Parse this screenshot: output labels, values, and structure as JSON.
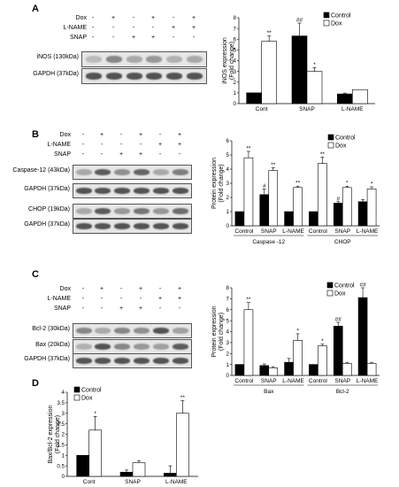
{
  "panels": [
    "A",
    "B",
    "C",
    "D"
  ],
  "blot_A": {
    "rows": [
      {
        "label": "Dox",
        "signs": [
          "-",
          "+",
          "-",
          "+",
          "-",
          "+"
        ]
      },
      {
        "label": "L-NAME",
        "signs": [
          "-",
          "-",
          "-",
          "-",
          "+",
          "+"
        ]
      },
      {
        "label": "SNAP",
        "signs": [
          "-",
          "-",
          "+",
          "+",
          "-",
          "-"
        ]
      }
    ],
    "bands": [
      {
        "label": "iNOS (130kDa)",
        "intensity": [
          0.25,
          0.55,
          0.35,
          0.45,
          0.3,
          0.35
        ]
      },
      {
        "label": "GAPDH (37kDa)",
        "intensity": [
          0.85,
          0.85,
          0.85,
          0.85,
          0.85,
          0.85
        ]
      }
    ]
  },
  "blot_B": {
    "rows": [
      {
        "label": "Dox",
        "signs": [
          "-",
          "+",
          "-",
          "+",
          "-",
          "+"
        ]
      },
      {
        "label": "L-NAME",
        "signs": [
          "-",
          "-",
          "-",
          "-",
          "+",
          "+"
        ]
      },
      {
        "label": "SNAP",
        "signs": [
          "-",
          "-",
          "+",
          "+",
          "-",
          "-"
        ]
      }
    ],
    "bands": [
      {
        "label": "Caspase-12 (43kDa)",
        "intensity": [
          0.35,
          0.8,
          0.5,
          0.75,
          0.35,
          0.6
        ]
      },
      {
        "label": "GAPDH (37kDa)",
        "intensity": [
          0.85,
          0.85,
          0.85,
          0.85,
          0.85,
          0.85
        ]
      },
      {
        "label": "CHOP (19kDa)",
        "intensity": [
          0.35,
          0.8,
          0.45,
          0.65,
          0.45,
          0.7
        ]
      },
      {
        "label": "GAPDH (37kDa)",
        "intensity": [
          0.85,
          0.85,
          0.85,
          0.85,
          0.85,
          0.85
        ]
      }
    ]
  },
  "blot_C": {
    "rows": [
      {
        "label": "Dox",
        "signs": [
          "-",
          "+",
          "-",
          "+",
          "-",
          "+"
        ]
      },
      {
        "label": "L-NAME",
        "signs": [
          "-",
          "-",
          "-",
          "-",
          "+",
          "+"
        ]
      },
      {
        "label": "SNAP",
        "signs": [
          "-",
          "-",
          "+",
          "+",
          "-",
          "-"
        ]
      }
    ],
    "bands": [
      {
        "label": "Bcl-2 (30kDa)",
        "intensity": [
          0.55,
          0.35,
          0.55,
          0.5,
          0.85,
          0.4
        ]
      },
      {
        "label": "Bax (20kDa)",
        "intensity": [
          0.3,
          0.85,
          0.55,
          0.45,
          0.4,
          0.8
        ]
      },
      {
        "label": "GAPDH (37kDa)",
        "intensity": [
          0.85,
          0.85,
          0.85,
          0.85,
          0.85,
          0.85
        ]
      }
    ]
  },
  "chart_data": [
    {
      "panel": "A",
      "type": "bar",
      "ylabel": "iNOS expression (Fold change)",
      "ylim": [
        0,
        8
      ],
      "yticks": [
        0,
        1,
        2,
        3,
        4,
        5,
        6,
        7,
        8
      ],
      "categories": [
        "Cont",
        "SNAP",
        "L-NAME"
      ],
      "legend": "top-right",
      "series": [
        {
          "name": "Control",
          "color": "#000000",
          "values": [
            1.0,
            6.3,
            0.9
          ],
          "errors": [
            0,
            1.2,
            0.08
          ],
          "marks": [
            "",
            "##",
            ""
          ]
        },
        {
          "name": "Dox",
          "color": "#ffffff",
          "values": [
            5.8,
            3.0,
            1.3
          ],
          "errors": [
            0.5,
            0.35,
            0
          ],
          "marks": [
            "**",
            "*",
            ""
          ]
        }
      ]
    },
    {
      "panel": "B",
      "type": "bar",
      "ylabel": "Protein expression (Fold change)",
      "ylim": [
        0,
        6
      ],
      "yticks": [
        0,
        1,
        2,
        3,
        4,
        5,
        6
      ],
      "categories": [
        "Control",
        "SNAP",
        "L-NAME",
        "Control",
        "SNAP",
        "L-NAME"
      ],
      "groups": [
        {
          "label": "Caspase -12",
          "span": [
            0,
            2
          ]
        },
        {
          "label": "CHOP",
          "span": [
            3,
            5
          ]
        }
      ],
      "legend": "top-right",
      "series": [
        {
          "name": "Control",
          "color": "#000000",
          "values": [
            1.0,
            2.2,
            1.0,
            1.0,
            1.6,
            1.7
          ],
          "errors": [
            0,
            0.4,
            0,
            0,
            0.1,
            0.15
          ],
          "marks": [
            "",
            "#",
            "",
            "",
            "#",
            ""
          ]
        },
        {
          "name": "Dox",
          "color": "#ffffff",
          "values": [
            4.8,
            3.9,
            2.7,
            4.4,
            2.7,
            2.6
          ],
          "errors": [
            0.45,
            0.2,
            0.1,
            0.45,
            0.1,
            0.15
          ],
          "marks": [
            "**",
            "**",
            "**",
            "**",
            "*",
            "*"
          ]
        }
      ]
    },
    {
      "panel": "C",
      "type": "bar",
      "ylabel": "Protein expression (Fold change)",
      "ylim": [
        0,
        8
      ],
      "yticks": [
        0,
        1,
        2,
        3,
        4,
        5,
        6,
        7,
        8
      ],
      "categories": [
        "Control",
        "SNAP",
        "L-NAME",
        "Control",
        "SNAP",
        "L-NAME"
      ],
      "groups": [
        {
          "label": "Bax",
          "span": [
            0,
            2
          ]
        },
        {
          "label": "Bcl-2",
          "span": [
            3,
            5
          ]
        }
      ],
      "legend": "top-right",
      "series": [
        {
          "name": "Control",
          "color": "#000000",
          "values": [
            1.0,
            0.9,
            1.2,
            1.0,
            4.5,
            7.1
          ],
          "errors": [
            0,
            0.15,
            0.35,
            0,
            0.35,
            0.9
          ],
          "marks": [
            "",
            "",
            "",
            "",
            "##",
            "##"
          ]
        },
        {
          "name": "Dox",
          "color": "#ffffff",
          "values": [
            6.0,
            0.7,
            3.2,
            2.7,
            1.1,
            1.1
          ],
          "errors": [
            0.65,
            0.1,
            0.6,
            0.15,
            0.1,
            0.1
          ],
          "marks": [
            "**",
            "",
            "*",
            "*",
            "",
            ""
          ]
        }
      ]
    },
    {
      "panel": "D",
      "type": "bar",
      "ylabel": "Bax/Bcl-2 expression (Fold change)",
      "ylim": [
        0,
        4
      ],
      "yticks": [
        0,
        0.5,
        1,
        1.5,
        2,
        2.5,
        3,
        3.5,
        4
      ],
      "categories": [
        "Cont",
        "SNAP",
        "L-NAME"
      ],
      "legend": "top-left",
      "series": [
        {
          "name": "Control",
          "color": "#000000",
          "values": [
            1.0,
            0.2,
            0.15
          ],
          "errors": [
            0,
            0.1,
            0.35
          ],
          "marks": [
            "",
            "",
            ""
          ]
        },
        {
          "name": "Dox",
          "color": "#ffffff",
          "values": [
            2.2,
            0.65,
            3.0
          ],
          "errors": [
            0.65,
            0.1,
            0.6
          ],
          "marks": [
            "*",
            "",
            "**"
          ]
        }
      ]
    }
  ]
}
